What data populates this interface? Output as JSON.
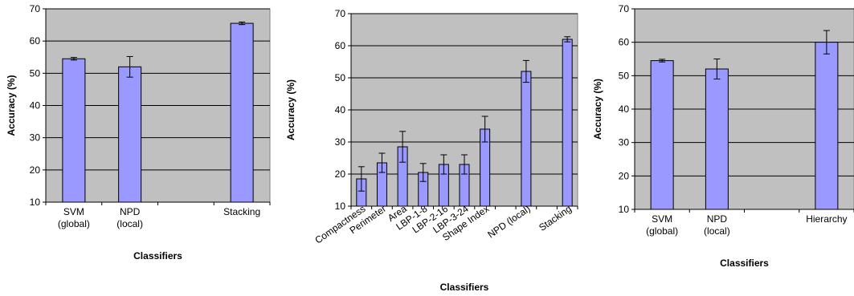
{
  "chart_data": [
    {
      "type": "bar",
      "categories": [
        "SVM\n(global)",
        "NPD\n(local)",
        "",
        "Stacking"
      ],
      "values": [
        54.5,
        52.0,
        null,
        65.5
      ],
      "errors": [
        0.4,
        3.2,
        null,
        0.4
      ],
      "xlabel": "Classifiers",
      "ylabel": "Accuracy (%)",
      "ylim": [
        10,
        70
      ],
      "yticks": [
        10,
        20,
        30,
        40,
        50,
        60,
        70
      ],
      "grid": true,
      "colors": {
        "plot_bg": "#c0c0c0",
        "bar": "#9999ff",
        "bar_edge": "#000000"
      }
    },
    {
      "type": "bar",
      "categories": [
        "Compactness",
        "Perimeter",
        "Area",
        "LBP-1-8",
        "LBP-2-16",
        "LBP-3-24",
        "Shape Index",
        "",
        "NPD (local)",
        "",
        "Stacking"
      ],
      "values": [
        18.5,
        23.5,
        28.5,
        20.5,
        23.0,
        23.0,
        34.0,
        null,
        52.0,
        null,
        62.0
      ],
      "errors": [
        3.8,
        3.0,
        4.8,
        2.8,
        3.0,
        3.0,
        4.0,
        null,
        3.4,
        null,
        0.8
      ],
      "xlabel": "Classifiers",
      "ylabel": "Accuracy (%)",
      "ylim": [
        10,
        70
      ],
      "yticks": [
        10,
        20,
        30,
        40,
        50,
        60,
        70
      ],
      "grid": true,
      "colors": {
        "plot_bg": "#c0c0c0",
        "bar": "#9999ff",
        "bar_edge": "#000000"
      }
    },
    {
      "type": "bar",
      "categories": [
        "SVM\n(global)",
        "NPD\n(local)",
        "",
        "Hierarchy"
      ],
      "values": [
        54.5,
        52.0,
        null,
        60.0
      ],
      "errors": [
        0.4,
        3.0,
        null,
        3.5
      ],
      "xlabel": "Classifiers",
      "ylabel": "Accuracy (%)",
      "ylim": [
        10,
        70
      ],
      "yticks": [
        10,
        20,
        30,
        40,
        50,
        60,
        70
      ],
      "grid": true,
      "colors": {
        "plot_bg": "#c0c0c0",
        "bar": "#9999ff",
        "bar_edge": "#000000"
      }
    }
  ]
}
